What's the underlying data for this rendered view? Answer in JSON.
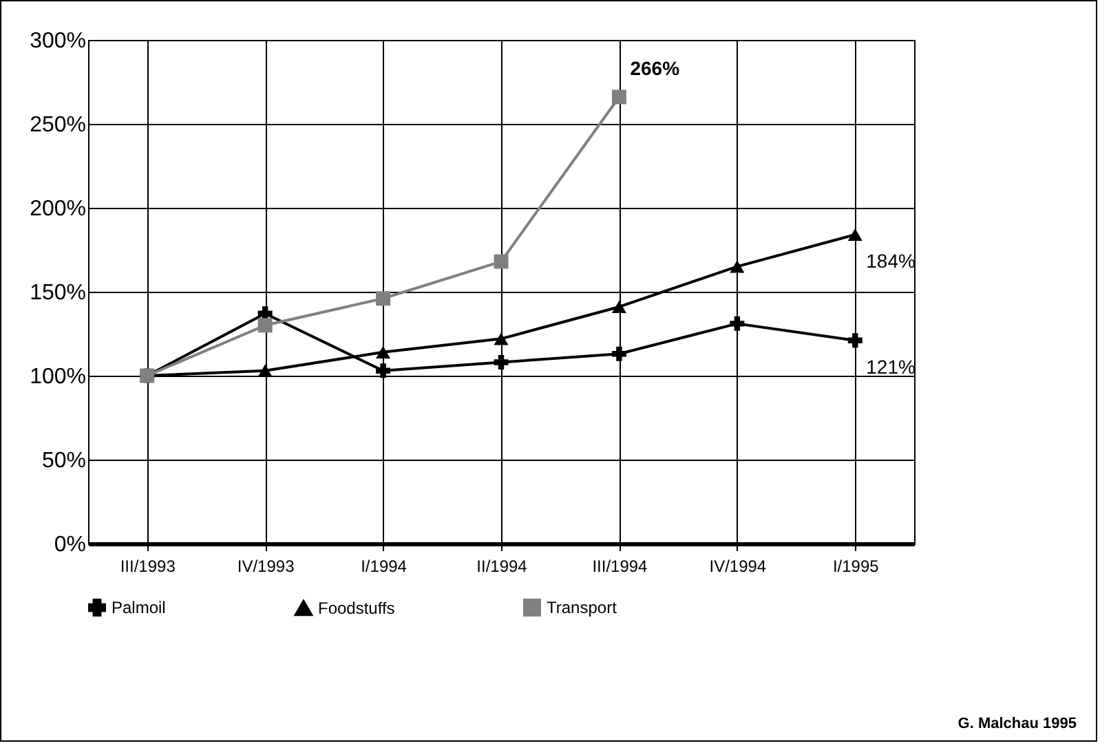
{
  "chart_data": {
    "type": "line",
    "categories": [
      "III/1993",
      "IV/1993",
      "I/1994",
      "II/1994",
      "III/1994",
      "IV/1994",
      "I/1995"
    ],
    "series": [
      {
        "name": "Palmoil",
        "color": "#000000",
        "marker": "cross",
        "values": [
          100,
          137,
          103,
          108,
          113,
          131,
          121
        ],
        "value_labels": [
          null,
          null,
          null,
          null,
          null,
          null,
          "121%"
        ]
      },
      {
        "name": "Foodstuffs",
        "color": "#000000",
        "marker": "triangle",
        "values": [
          100,
          103,
          114,
          122,
          141,
          165,
          184
        ],
        "value_labels": [
          null,
          null,
          null,
          null,
          null,
          null,
          "184%"
        ]
      },
      {
        "name": "Transport",
        "color": "#808080",
        "marker": "square",
        "values": [
          100,
          130,
          146,
          168,
          266,
          null,
          null
        ],
        "value_labels": [
          null,
          null,
          null,
          null,
          "266%",
          null,
          null
        ]
      }
    ],
    "ylim": [
      0,
      300
    ],
    "yticks": [
      {
        "value": 0,
        "label": "0%"
      },
      {
        "value": 50,
        "label": "50%"
      },
      {
        "value": 100,
        "label": "100%"
      },
      {
        "value": 150,
        "label": "150%"
      },
      {
        "value": 200,
        "label": "200%"
      },
      {
        "value": 250,
        "label": "250%"
      },
      {
        "value": 300,
        "label": "300%"
      }
    ],
    "grid": true,
    "legend": "bottom",
    "annotations": [
      "G. Malchau 1995"
    ]
  }
}
